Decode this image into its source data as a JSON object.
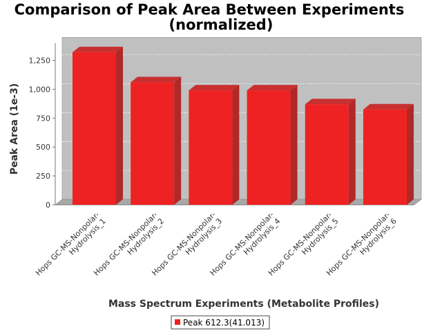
{
  "chart_data": {
    "type": "bar",
    "title_lines": [
      "Comparison of Peak Area Between Experiments",
      "(normalized)"
    ],
    "xlabel": "Mass Spectrum Experiments (Metabolite Profiles)",
    "ylabel": "Peak Area (1e-3)",
    "categories": [
      [
        "Hops GC-MS-Nonpolar-",
        "Hydrolysis_1"
      ],
      [
        "Hops GC-MS-Nonpolar-",
        "Hydrolysis_2"
      ],
      [
        "Hops GC-MS-Nonpolar-",
        "Hydrolysis_3"
      ],
      [
        "Hops GC-MS-Nonpolar-",
        "Hydrolysis_4"
      ],
      [
        "Hops GC-MS-Nonpolar-",
        "Hydrolysis_5"
      ],
      [
        "Hops GC-MS-Nonpolar-",
        "Hydrolysis_6"
      ]
    ],
    "series": [
      {
        "name": "Peak 612.3(41.013)",
        "color": "#ee2222",
        "values": [
          1320,
          1060,
          990,
          990,
          870,
          825
        ]
      }
    ],
    "ylim": [
      0,
      1400
    ],
    "yticks": [
      {
        "value": 0,
        "label": "0"
      },
      {
        "value": 250,
        "label": "250"
      },
      {
        "value": 500,
        "label": "500"
      },
      {
        "value": 750,
        "label": "750"
      },
      {
        "value": 1000,
        "label": "1,000"
      },
      {
        "value": 1250,
        "label": "1,250"
      }
    ],
    "grid": true,
    "legend_position": "bottom",
    "plot_background": "#c0c0c0",
    "style": "3d"
  }
}
